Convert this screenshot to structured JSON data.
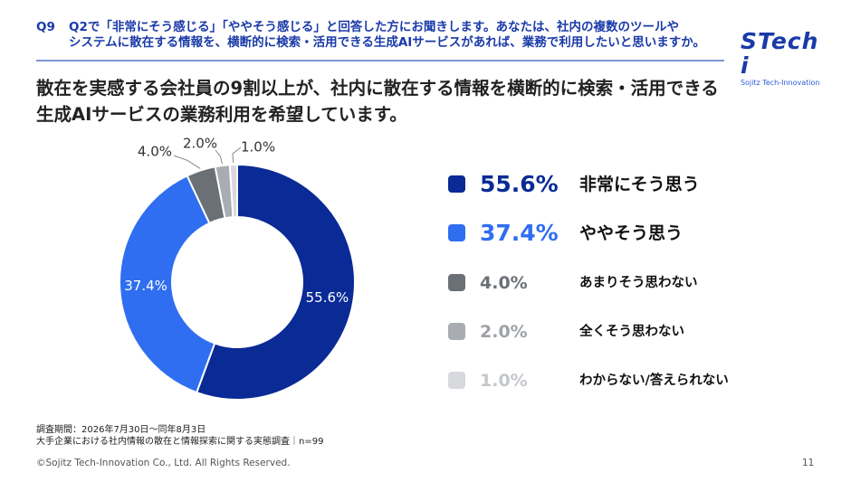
{
  "header": {
    "question_label": "Q9",
    "question_line1": "Q2で「非常にそう感じる」「ややそう感じる」と回答した方にお聞きします。あなたは、社内の複数のツールや",
    "question_line2": "システムに散在する情報を、横断的に検索・活用できる生成AIサービスがあれば、業務で利用したいと思いますか。"
  },
  "logo": {
    "main": "STech i",
    "sub": "Sojitz Tech-Innovation"
  },
  "headline": {
    "line1": "散在を実感する会社員の9割以上が、社内に散在する情報を横断的に検索・活用できる",
    "line2": "生成AIサービスの業務利用を希望しています。"
  },
  "chart_data": {
    "type": "pie",
    "donut": true,
    "title": "",
    "categories": [
      "非常にそう思う",
      "ややそう思う",
      "あまりそう思わない",
      "全くそう思わない",
      "わからない/答えられない"
    ],
    "values": [
      55.6,
      37.4,
      4.0,
      2.0,
      1.0
    ],
    "value_labels": [
      "55.6%",
      "37.4%",
      "4.0%",
      "2.0%",
      "1.0%"
    ],
    "colors": [
      "#0a2a96",
      "#2f6ef0",
      "#6b7077",
      "#a9adb3",
      "#d7d9dd"
    ],
    "legend_value_colors": [
      "#0a2a96",
      "#2f6ef0",
      "#6b7077",
      "#9ea2a8",
      "#c4c7cc"
    ],
    "legend_placement": "right"
  },
  "footer": {
    "survey_period": "調査期間：2026年7月30日～同年8月3日",
    "survey_title": "大手企業における社内情報の散在と情報探索に関する実態調査｜n=99",
    "copyright": "©Sojitz Tech-Innovation Co., Ltd. All Rights Reserved.",
    "page_number": "11"
  }
}
